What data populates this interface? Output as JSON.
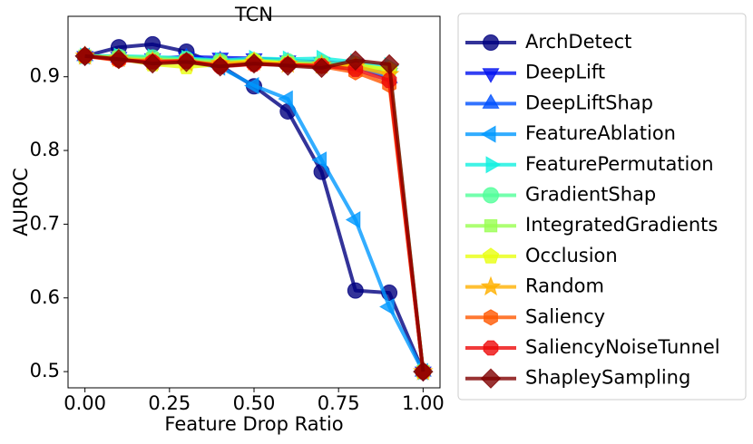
{
  "chart_data": {
    "type": "line",
    "title": "TCN",
    "x_label": "Feature Drop Ratio",
    "y_label": "AUROC",
    "x": [
      0,
      0.1,
      0.2,
      0.3,
      0.4,
      0.5,
      0.6,
      0.7,
      0.8,
      0.9,
      1.0
    ],
    "xlim": [
      -0.05,
      1.05
    ],
    "ylim": [
      0.478,
      0.982
    ],
    "xticks": [
      {
        "value": 0,
        "label": "0.00"
      },
      {
        "value": 0.25,
        "label": "0.25"
      },
      {
        "value": 0.5,
        "label": "0.50"
      },
      {
        "value": 0.75,
        "label": "0.75"
      },
      {
        "value": 1.0,
        "label": "1.00"
      }
    ],
    "yticks": [
      0.5,
      0.6,
      0.7,
      0.8,
      0.9
    ],
    "legend": "outside-right",
    "series": [
      {
        "name": "ArchDetect",
        "color": "#000080",
        "marker": "circle",
        "values": [
          0.928,
          0.94,
          0.944,
          0.934,
          0.915,
          0.887,
          0.853,
          0.771,
          0.61,
          0.607,
          0.5
        ]
      },
      {
        "name": "DeepLift",
        "color": "#0010f0",
        "marker": "tri-down",
        "values": [
          0.928,
          0.927,
          0.925,
          0.927,
          0.926,
          0.925,
          0.922,
          0.92,
          0.918,
          0.905,
          0.5
        ]
      },
      {
        "name": "DeepLiftShap",
        "color": "#0050ff",
        "marker": "tri-up",
        "values": [
          0.928,
          0.926,
          0.925,
          0.926,
          0.922,
          0.921,
          0.92,
          0.918,
          0.915,
          0.898,
          0.5
        ]
      },
      {
        "name": "FeatureAblation",
        "color": "#0098ff",
        "marker": "tri-left",
        "values": [
          0.928,
          0.925,
          0.922,
          0.92,
          0.913,
          0.888,
          0.87,
          0.787,
          0.706,
          0.588,
          0.5
        ]
      },
      {
        "name": "FeaturePermutation",
        "color": "#10f0e0",
        "marker": "tri-right",
        "values": [
          0.928,
          0.928,
          0.927,
          0.925,
          0.922,
          0.925,
          0.924,
          0.925,
          0.92,
          0.915,
          0.5
        ]
      },
      {
        "name": "GradientShap",
        "color": "#50ff98",
        "marker": "circle",
        "values": [
          0.928,
          0.927,
          0.926,
          0.924,
          0.921,
          0.922,
          0.921,
          0.919,
          0.917,
          0.91,
          0.5
        ]
      },
      {
        "name": "IntegratedGradients",
        "color": "#98ff50",
        "marker": "square",
        "values": [
          0.928,
          0.926,
          0.924,
          0.922,
          0.92,
          0.921,
          0.919,
          0.917,
          0.912,
          0.908,
          0.5
        ]
      },
      {
        "name": "Occlusion",
        "color": "#e8ff10",
        "marker": "pentagon",
        "values": [
          0.928,
          0.924,
          0.917,
          0.913,
          0.917,
          0.922,
          0.918,
          0.914,
          0.916,
          0.91,
          0.5
        ]
      },
      {
        "name": "Random",
        "color": "#ffb000",
        "marker": "star",
        "values": [
          0.928,
          0.925,
          0.921,
          0.919,
          0.918,
          0.92,
          0.917,
          0.916,
          0.914,
          0.903,
          0.5
        ]
      },
      {
        "name": "Saliency",
        "color": "#ff5800",
        "marker": "hexagon",
        "values": [
          0.928,
          0.922,
          0.921,
          0.922,
          0.915,
          0.918,
          0.916,
          0.914,
          0.906,
          0.889,
          0.5
        ]
      },
      {
        "name": "SaliencyNoiseTunnel",
        "color": "#ee0a0a",
        "marker": "octagon",
        "values": [
          0.928,
          0.923,
          0.92,
          0.921,
          0.914,
          0.917,
          0.916,
          0.915,
          0.91,
          0.895,
          0.5
        ]
      },
      {
        "name": "ShapleySampling",
        "color": "#800000",
        "marker": "diamond",
        "values": [
          0.928,
          0.924,
          0.918,
          0.92,
          0.914,
          0.918,
          0.915,
          0.912,
          0.922,
          0.917,
          0.5
        ]
      }
    ]
  }
}
